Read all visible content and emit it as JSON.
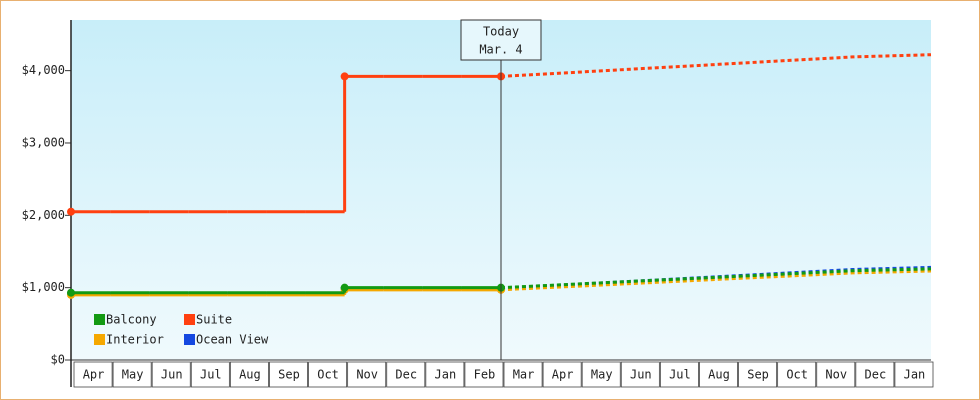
{
  "chart_data": {
    "type": "step",
    "categories": [
      "Apr",
      "May",
      "Jun",
      "Jul",
      "Aug",
      "Sep",
      "Oct",
      "Nov",
      "Dec",
      "Jan",
      "Feb",
      "Mar",
      "Apr",
      "May",
      "Jun",
      "Jul",
      "Aug",
      "Sep",
      "Oct",
      "Nov",
      "Dec",
      "Jan"
    ],
    "ylim": [
      0,
      4700
    ],
    "yticks": [
      {
        "value": 0,
        "label": "$0"
      },
      {
        "value": 1000,
        "label": "$1,000"
      },
      {
        "value": 2000,
        "label": "$2,000"
      },
      {
        "value": 3000,
        "label": "$3,000"
      },
      {
        "value": 4000,
        "label": "$4,000"
      }
    ],
    "today": {
      "title": "Today",
      "date": "Mar. 4"
    },
    "series": [
      {
        "name": "Balcony",
        "color": "#139a13",
        "values": [
          930,
          930,
          930,
          930,
          930,
          930,
          930,
          1000,
          1000,
          1000,
          1000,
          1000,
          1026,
          1052,
          1078,
          1104,
          1130,
          1156,
          1182,
          1208,
          1234,
          1260
        ]
      },
      {
        "name": "Suite",
        "color": "#ff4010",
        "values": [
          2050,
          2050,
          2050,
          2050,
          2050,
          2050,
          2050,
          3920,
          3920,
          3920,
          3920,
          3920,
          3950,
          3980,
          4010,
          4040,
          4070,
          4100,
          4130,
          4160,
          4190,
          4220
        ]
      },
      {
        "name": "Interior",
        "color": "#f5a800",
        "values": [
          900,
          900,
          900,
          900,
          900,
          900,
          900,
          970,
          970,
          970,
          970,
          970,
          996,
          1022,
          1048,
          1074,
          1100,
          1126,
          1152,
          1178,
          1204,
          1230
        ]
      },
      {
        "name": "Ocean View",
        "color": "#1448e0",
        "values": [
          920,
          920,
          920,
          920,
          920,
          920,
          920,
          990,
          990,
          990,
          990,
          990,
          1019,
          1048,
          1077,
          1106,
          1135,
          1164,
          1193,
          1222,
          1251,
          1280
        ]
      }
    ]
  }
}
